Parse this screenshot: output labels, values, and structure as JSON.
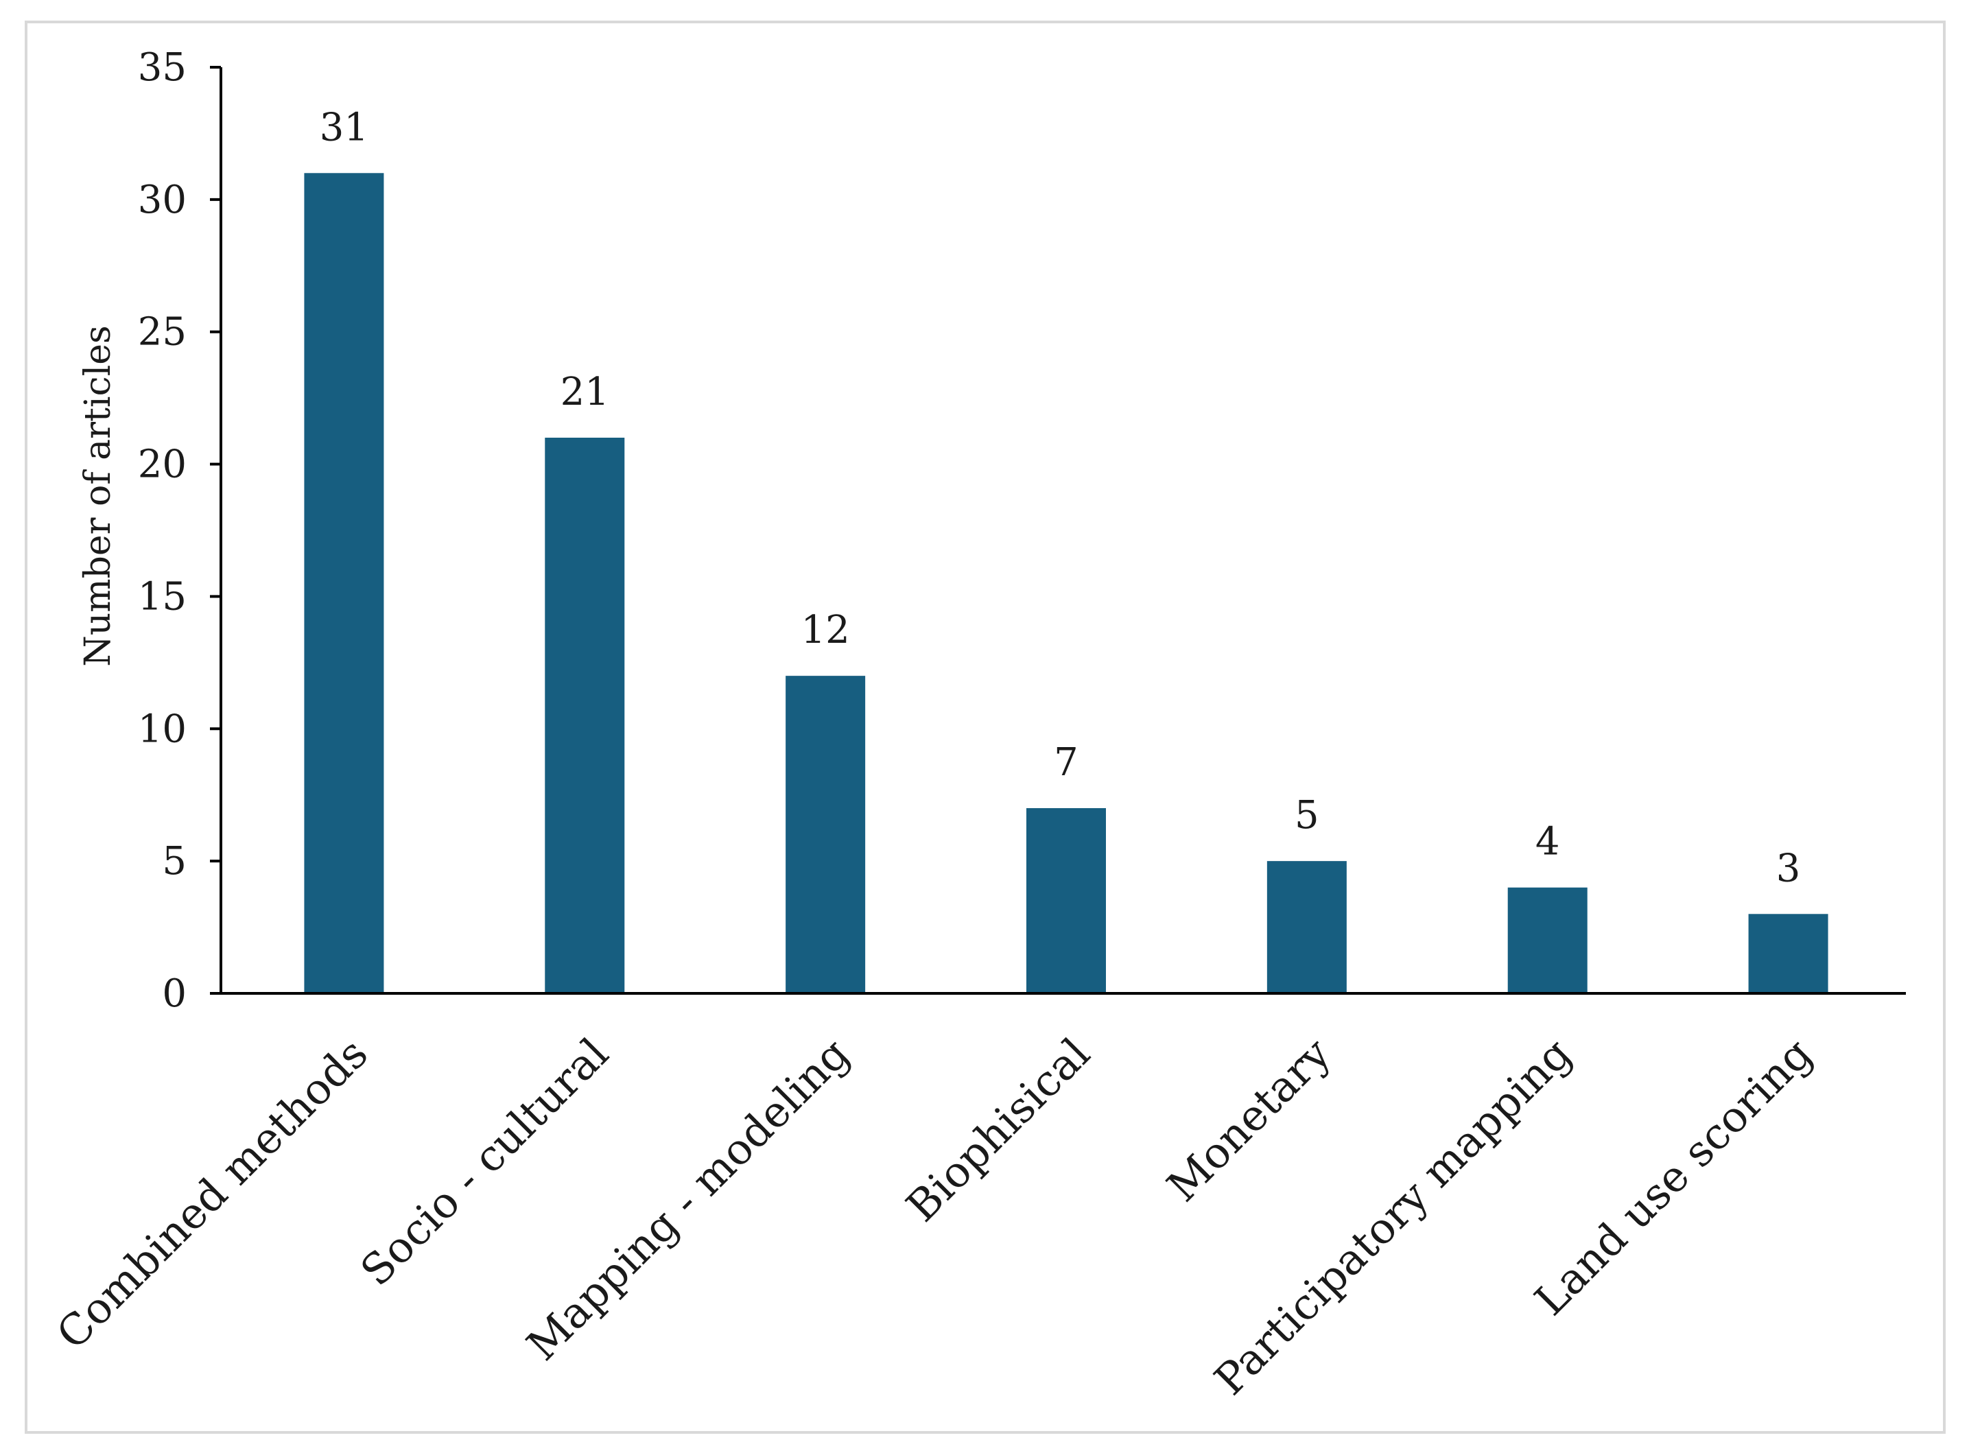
{
  "chart_data": {
    "type": "bar",
    "title": "",
    "xlabel": "",
    "ylabel": "Number of articles",
    "categories": [
      "Combined methods",
      "Socio - cultural",
      "Mapping - modeling",
      "Biophisical",
      "Monetary",
      "Participatory mapping",
      "Land use scoring"
    ],
    "values": [
      31,
      21,
      12,
      7,
      5,
      4,
      3
    ],
    "ylim": [
      0,
      35
    ],
    "yticks": [
      0,
      5,
      10,
      15,
      20,
      25,
      30,
      35
    ],
    "data_labels": true,
    "grid": false,
    "legend": "none",
    "bar_color": "#175e80"
  }
}
